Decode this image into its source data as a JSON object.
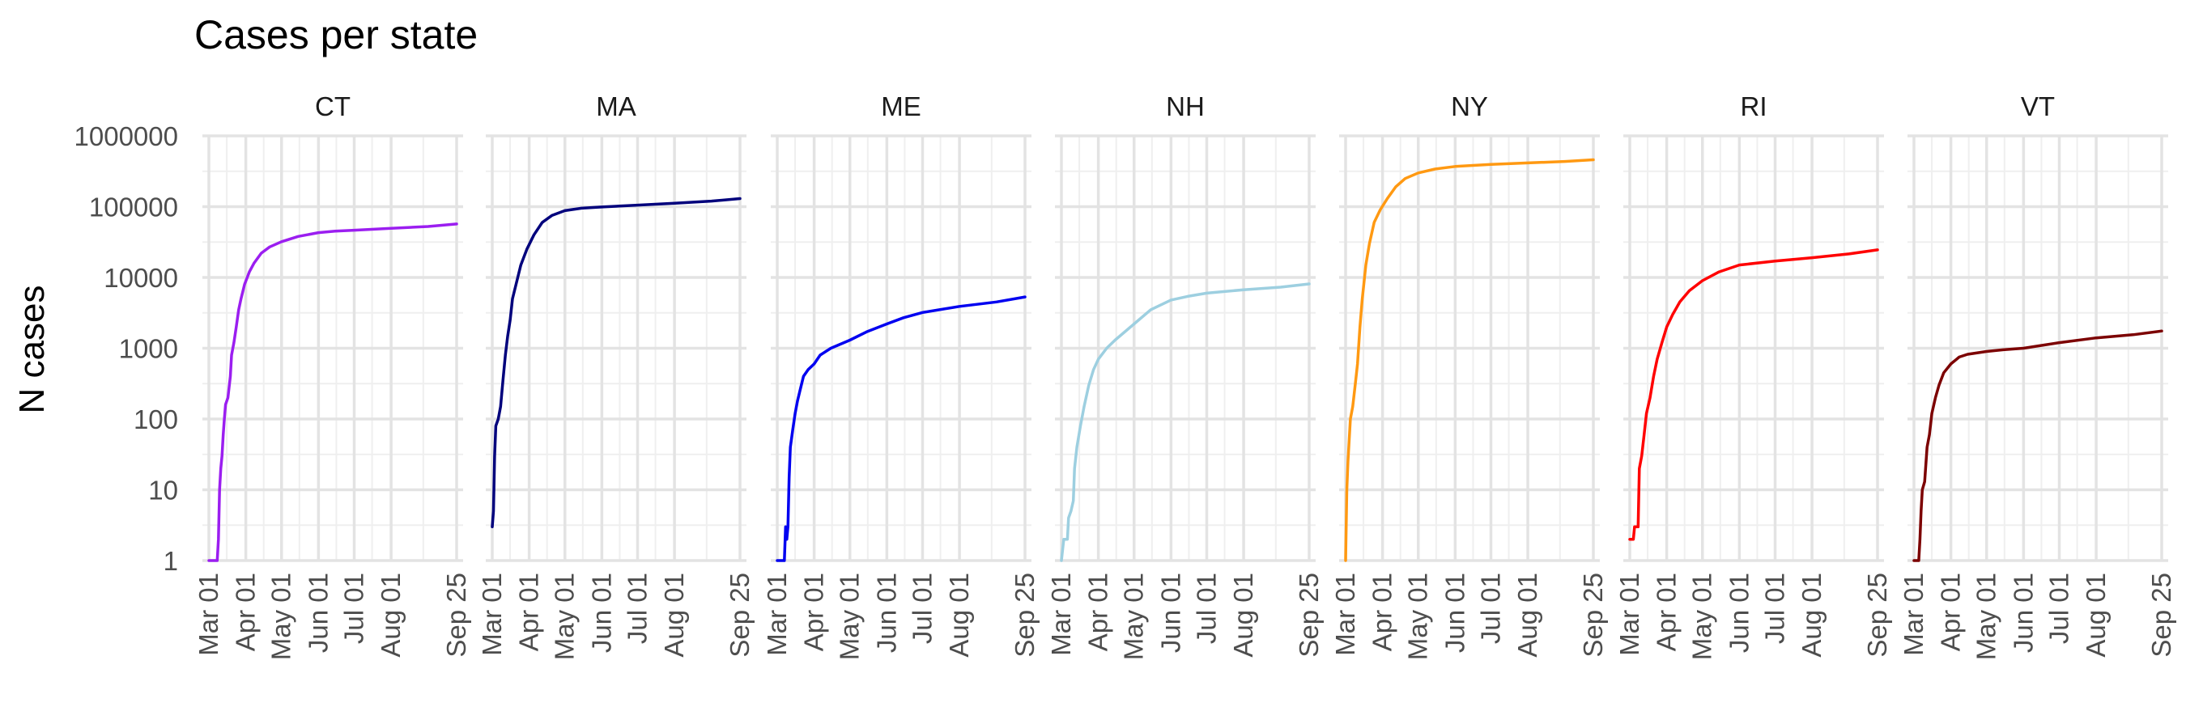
{
  "chart_data": {
    "type": "line",
    "title": "Cases per state",
    "ylabel": "N cases",
    "xlabel": "",
    "y_scale": "log10",
    "ylim": [
      1,
      1000000
    ],
    "y_ticks": [
      {
        "value": 1,
        "label": "1"
      },
      {
        "value": 10,
        "label": "10"
      },
      {
        "value": 100,
        "label": "100"
      },
      {
        "value": 1000,
        "label": "1000"
      },
      {
        "value": 10000,
        "label": "10000"
      },
      {
        "value": 100000,
        "label": "100000"
      },
      {
        "value": 1000000,
        "label": "1000000"
      }
    ],
    "xlim": [
      "2020-03-01",
      "2020-09-25"
    ],
    "x_ticks": [
      {
        "value": "2020-03-01",
        "label": "Mar 01"
      },
      {
        "value": "2020-04-01",
        "label": "Apr 01"
      },
      {
        "value": "2020-05-01",
        "label": "May 01"
      },
      {
        "value": "2020-06-01",
        "label": "Jun 01"
      },
      {
        "value": "2020-07-01",
        "label": "Jul 01"
      },
      {
        "value": "2020-08-01",
        "label": "Aug 01"
      },
      {
        "value": "2020-09-25",
        "label": "Sep 25"
      }
    ],
    "grid": true,
    "legend": "none",
    "facets": [
      {
        "label": "CT",
        "color": "#9B1EF0",
        "points": [
          [
            "2020-03-01",
            1
          ],
          [
            "2020-03-08",
            1
          ],
          [
            "2020-03-09",
            2
          ],
          [
            "2020-03-10",
            10
          ],
          [
            "2020-03-11",
            20
          ],
          [
            "2020-03-12",
            30
          ],
          [
            "2020-03-13",
            60
          ],
          [
            "2020-03-14",
            100
          ],
          [
            "2020-03-15",
            160
          ],
          [
            "2020-03-17",
            200
          ],
          [
            "2020-03-19",
            400
          ],
          [
            "2020-03-20",
            800
          ],
          [
            "2020-03-22",
            1200
          ],
          [
            "2020-03-24",
            2000
          ],
          [
            "2020-03-26",
            3500
          ],
          [
            "2020-03-28",
            5000
          ],
          [
            "2020-03-31",
            8000
          ],
          [
            "2020-04-04",
            12000
          ],
          [
            "2020-04-08",
            16000
          ],
          [
            "2020-04-14",
            22000
          ],
          [
            "2020-04-21",
            27000
          ],
          [
            "2020-05-01",
            32000
          ],
          [
            "2020-05-15",
            38000
          ],
          [
            "2020-06-01",
            43000
          ],
          [
            "2020-06-15",
            45000
          ],
          [
            "2020-07-01",
            46500
          ],
          [
            "2020-08-01",
            49500
          ],
          [
            "2020-09-01",
            52500
          ],
          [
            "2020-09-25",
            57000
          ]
        ]
      },
      {
        "label": "MA",
        "color": "#00007C",
        "points": [
          [
            "2020-03-01",
            3
          ],
          [
            "2020-03-02",
            5
          ],
          [
            "2020-03-03",
            30
          ],
          [
            "2020-03-04",
            80
          ],
          [
            "2020-03-06",
            100
          ],
          [
            "2020-03-08",
            150
          ],
          [
            "2020-03-10",
            350
          ],
          [
            "2020-03-12",
            800
          ],
          [
            "2020-03-14",
            1500
          ],
          [
            "2020-03-16",
            2500
          ],
          [
            "2020-03-18",
            5000
          ],
          [
            "2020-03-21",
            8000
          ],
          [
            "2020-03-25",
            15000
          ],
          [
            "2020-03-30",
            25000
          ],
          [
            "2020-04-05",
            40000
          ],
          [
            "2020-04-12",
            60000
          ],
          [
            "2020-04-20",
            75000
          ],
          [
            "2020-05-01",
            88000
          ],
          [
            "2020-05-15",
            95000
          ],
          [
            "2020-06-01",
            99000
          ],
          [
            "2020-07-01",
            105000
          ],
          [
            "2020-08-01",
            112000
          ],
          [
            "2020-09-01",
            120000
          ],
          [
            "2020-09-25",
            130000
          ]
        ]
      },
      {
        "label": "ME",
        "color": "#0000F0",
        "points": [
          [
            "2020-03-01",
            1
          ],
          [
            "2020-03-07",
            1
          ],
          [
            "2020-03-08",
            3
          ],
          [
            "2020-03-09",
            2
          ],
          [
            "2020-03-10",
            3
          ],
          [
            "2020-03-11",
            15
          ],
          [
            "2020-03-12",
            40
          ],
          [
            "2020-03-14",
            70
          ],
          [
            "2020-03-16",
            120
          ],
          [
            "2020-03-18",
            180
          ],
          [
            "2020-03-20",
            250
          ],
          [
            "2020-03-23",
            400
          ],
          [
            "2020-03-27",
            500
          ],
          [
            "2020-04-01",
            600
          ],
          [
            "2020-04-06",
            800
          ],
          [
            "2020-04-15",
            1000
          ],
          [
            "2020-05-01",
            1300
          ],
          [
            "2020-05-15",
            1700
          ],
          [
            "2020-06-01",
            2200
          ],
          [
            "2020-06-15",
            2700
          ],
          [
            "2020-07-01",
            3200
          ],
          [
            "2020-08-01",
            3900
          ],
          [
            "2020-09-01",
            4500
          ],
          [
            "2020-09-25",
            5300
          ]
        ]
      },
      {
        "label": "NH",
        "color": "#9DCFE0",
        "points": [
          [
            "2020-03-01",
            1
          ],
          [
            "2020-03-03",
            2
          ],
          [
            "2020-03-06",
            2
          ],
          [
            "2020-03-07",
            4
          ],
          [
            "2020-03-09",
            5
          ],
          [
            "2020-03-11",
            7
          ],
          [
            "2020-03-12",
            20
          ],
          [
            "2020-03-14",
            40
          ],
          [
            "2020-03-17",
            80
          ],
          [
            "2020-03-20",
            150
          ],
          [
            "2020-03-24",
            300
          ],
          [
            "2020-03-28",
            500
          ],
          [
            "2020-04-01",
            700
          ],
          [
            "2020-04-08",
            1000
          ],
          [
            "2020-04-15",
            1300
          ],
          [
            "2020-05-01",
            2200
          ],
          [
            "2020-05-15",
            3500
          ],
          [
            "2020-06-01",
            4800
          ],
          [
            "2020-06-15",
            5400
          ],
          [
            "2020-07-01",
            6000
          ],
          [
            "2020-08-01",
            6700
          ],
          [
            "2020-09-01",
            7300
          ],
          [
            "2020-09-25",
            8100
          ]
        ]
      },
      {
        "label": "NY",
        "color": "#FF9912",
        "points": [
          [
            "2020-03-01",
            1
          ],
          [
            "2020-03-02",
            10
          ],
          [
            "2020-03-03",
            25
          ],
          [
            "2020-03-05",
            100
          ],
          [
            "2020-03-07",
            150
          ],
          [
            "2020-03-09",
            300
          ],
          [
            "2020-03-11",
            600
          ],
          [
            "2020-03-13",
            2000
          ],
          [
            "2020-03-15",
            5000
          ],
          [
            "2020-03-18",
            15000
          ],
          [
            "2020-03-21",
            30000
          ],
          [
            "2020-03-25",
            60000
          ],
          [
            "2020-03-30",
            90000
          ],
          [
            "2020-04-05",
            130000
          ],
          [
            "2020-04-12",
            190000
          ],
          [
            "2020-04-20",
            250000
          ],
          [
            "2020-05-01",
            300000
          ],
          [
            "2020-05-15",
            340000
          ],
          [
            "2020-06-01",
            370000
          ],
          [
            "2020-07-01",
            395000
          ],
          [
            "2020-08-01",
            415000
          ],
          [
            "2020-09-01",
            435000
          ],
          [
            "2020-09-25",
            460000
          ]
        ]
      },
      {
        "label": "RI",
        "color": "#FF0000",
        "points": [
          [
            "2020-03-01",
            2
          ],
          [
            "2020-03-04",
            2
          ],
          [
            "2020-03-05",
            3
          ],
          [
            "2020-03-08",
            3
          ],
          [
            "2020-03-09",
            20
          ],
          [
            "2020-03-11",
            30
          ],
          [
            "2020-03-13",
            60
          ],
          [
            "2020-03-15",
            120
          ],
          [
            "2020-03-18",
            200
          ],
          [
            "2020-03-21",
            400
          ],
          [
            "2020-03-24",
            700
          ],
          [
            "2020-03-28",
            1200
          ],
          [
            "2020-04-01",
            2000
          ],
          [
            "2020-04-06",
            3000
          ],
          [
            "2020-04-12",
            4500
          ],
          [
            "2020-04-20",
            6500
          ],
          [
            "2020-05-01",
            9000
          ],
          [
            "2020-05-15",
            12000
          ],
          [
            "2020-06-01",
            15000
          ],
          [
            "2020-07-01",
            17000
          ],
          [
            "2020-08-01",
            19000
          ],
          [
            "2020-09-01",
            21500
          ],
          [
            "2020-09-25",
            24500
          ]
        ]
      },
      {
        "label": "VT",
        "color": "#7C0000",
        "points": [
          [
            "2020-03-01",
            1
          ],
          [
            "2020-03-05",
            1
          ],
          [
            "2020-03-06",
            2
          ],
          [
            "2020-03-07",
            5
          ],
          [
            "2020-03-08",
            10
          ],
          [
            "2020-03-10",
            13
          ],
          [
            "2020-03-12",
            40
          ],
          [
            "2020-03-14",
            60
          ],
          [
            "2020-03-16",
            120
          ],
          [
            "2020-03-19",
            200
          ],
          [
            "2020-03-22",
            300
          ],
          [
            "2020-03-26",
            450
          ],
          [
            "2020-04-01",
            600
          ],
          [
            "2020-04-08",
            750
          ],
          [
            "2020-04-15",
            820
          ],
          [
            "2020-05-01",
            900
          ],
          [
            "2020-05-15",
            950
          ],
          [
            "2020-06-01",
            1000
          ],
          [
            "2020-07-01",
            1200
          ],
          [
            "2020-08-01",
            1400
          ],
          [
            "2020-09-01",
            1550
          ],
          [
            "2020-09-25",
            1750
          ]
        ]
      }
    ]
  }
}
